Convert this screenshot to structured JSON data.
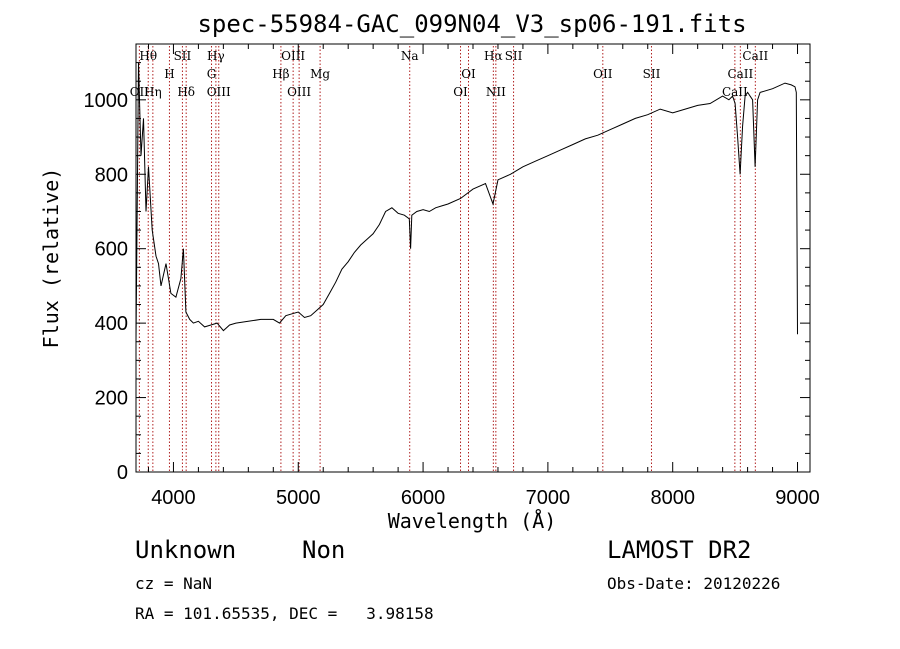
{
  "chart_data": {
    "type": "line",
    "title": "spec-55984-GAC_099N04_V3_sp06-191.fits",
    "xlabel": "Wavelength (Å)",
    "ylabel": "Flux (relative)",
    "xlim": [
      3700,
      9100
    ],
    "ylim": [
      0,
      1150
    ],
    "xticks": [
      4000,
      5000,
      6000,
      7000,
      8000,
      9000
    ],
    "yticks": [
      0,
      200,
      400,
      600,
      800,
      1000
    ],
    "line_color": "#000000",
    "marker_color": "#b02020",
    "series": [
      {
        "x": [
          3700,
          3720,
          3740,
          3760,
          3780,
          3800,
          3830,
          3860,
          3880,
          3900,
          3940,
          3980,
          4020,
          4060,
          4080,
          4100,
          4130,
          4160,
          4200,
          4250,
          4300,
          4350,
          4400,
          4450,
          4500,
          4600,
          4700,
          4800,
          4850,
          4900,
          4950,
          5000,
          5050,
          5100,
          5150,
          5200,
          5250,
          5300,
          5350,
          5400,
          5450,
          5500,
          5550,
          5600,
          5650,
          5700,
          5750,
          5800,
          5850,
          5890,
          5900,
          5910,
          5950,
          6000,
          6050,
          6100,
          6150,
          6200,
          6300,
          6400,
          6500,
          6560,
          6600,
          6700,
          6800,
          6900,
          7000,
          7100,
          7200,
          7300,
          7400,
          7500,
          7600,
          7700,
          7800,
          7900,
          8000,
          8100,
          8200,
          8300,
          8400,
          8450,
          8480,
          8500,
          8520,
          8540,
          8560,
          8580,
          8600,
          8640,
          8660,
          8680,
          8700,
          8800,
          8900,
          8950,
          8980,
          8990,
          9000
        ],
        "y": [
          350,
          1100,
          850,
          950,
          700,
          820,
          650,
          580,
          560,
          500,
          560,
          480,
          470,
          520,
          600,
          430,
          410,
          400,
          405,
          390,
          395,
          400,
          380,
          395,
          400,
          405,
          410,
          410,
          400,
          420,
          425,
          430,
          415,
          420,
          435,
          450,
          480,
          510,
          545,
          565,
          590,
          610,
          625,
          640,
          665,
          700,
          710,
          695,
          690,
          680,
          600,
          690,
          700,
          705,
          700,
          710,
          715,
          720,
          735,
          760,
          775,
          720,
          785,
          800,
          820,
          835,
          850,
          865,
          880,
          895,
          905,
          920,
          935,
          950,
          960,
          975,
          965,
          975,
          985,
          990,
          1010,
          1000,
          1010,
          990,
          900,
          800,
          930,
          1010,
          1020,
          1000,
          820,
          1000,
          1020,
          1030,
          1045,
          1040,
          1035,
          1020,
          370
        ]
      }
    ],
    "line_markers": [
      {
        "label": "Hθ",
        "x": 3798,
        "row": 0
      },
      {
        "label": "OII",
        "x": 3727,
        "row": 2
      },
      {
        "label": "Hη",
        "x": 3835,
        "row": 2
      },
      {
        "label": "H",
        "x": 3968,
        "row": 1
      },
      {
        "label": "SII",
        "x": 4072,
        "row": 0
      },
      {
        "label": "Hδ",
        "x": 4102,
        "row": 2
      },
      {
        "label": "Hγ",
        "x": 4340,
        "row": 0
      },
      {
        "label": "G",
        "x": 4305,
        "row": 1
      },
      {
        "label": "OIII",
        "x": 4363,
        "row": 2
      },
      {
        "label": "OIII",
        "x": 4959,
        "row": 0
      },
      {
        "label": "Hβ",
        "x": 4861,
        "row": 1
      },
      {
        "label": "OIII",
        "x": 5007,
        "row": 2
      },
      {
        "label": "Mg",
        "x": 5175,
        "row": 1
      },
      {
        "label": "Na",
        "x": 5893,
        "row": 0
      },
      {
        "label": "OI",
        "x": 6364,
        "row": 1
      },
      {
        "label": "OI",
        "x": 6300,
        "row": 2
      },
      {
        "label": "Hα",
        "x": 6563,
        "row": 0
      },
      {
        "label": "SII",
        "x": 6725,
        "row": 0
      },
      {
        "label": "NII",
        "x": 6583,
        "row": 2
      },
      {
        "label": "OII",
        "x": 7440,
        "row": 1
      },
      {
        "label": "SII",
        "x": 7830,
        "row": 1
      },
      {
        "label": "CaII",
        "x": 8662,
        "row": 0
      },
      {
        "label": "CaII",
        "x": 8542,
        "row": 1
      },
      {
        "label": "CaII",
        "x": 8498,
        "row": 2
      }
    ]
  },
  "info": {
    "object_class": "Unknown",
    "subclass": "Non",
    "survey": "LAMOST DR2",
    "cz": "cz = NaN",
    "obs_date": "Obs-Date: 20120226",
    "coords": "RA = 101.65535, DEC =   3.98158"
  }
}
